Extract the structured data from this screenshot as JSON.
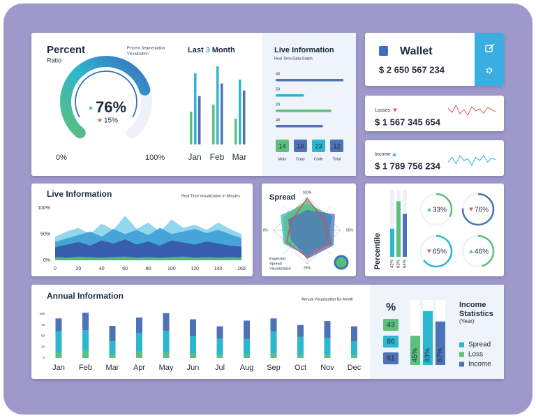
{
  "percent": {
    "title": "Percent",
    "subtitle": "Ratio",
    "note": [
      "Percent Segmentation",
      "Visualization"
    ],
    "value": 76,
    "value_label": "76%",
    "change": 15,
    "change_label": "15%",
    "ticks": [
      {
        "value": 0,
        "label": "0%"
      },
      {
        "value": 100,
        "label": "100%"
      }
    ]
  },
  "last_months": {
    "title": [
      "Last",
      "3",
      "Month"
    ],
    "categories": [
      "Jan",
      "Feb",
      "Mar"
    ],
    "series": [
      {
        "color": "#5cbf7c",
        "values": [
          42,
          51,
          33
        ]
      },
      {
        "color": "#2cb6cf",
        "values": [
          91,
          100,
          83
        ]
      },
      {
        "color": "#4d72b7",
        "values": [
          62,
          78,
          69
        ]
      }
    ]
  },
  "live_info": {
    "title": "Live Information",
    "subtitle": "Real Time Data Graph",
    "rows": [
      {
        "label": "40",
        "value": 100,
        "color": "#4d72b7"
      },
      {
        "label": "50",
        "value": 42,
        "color": "#2cb6cf"
      },
      {
        "label": "20",
        "value": 82,
        "color": "#5cbf7c"
      },
      {
        "label": "40",
        "value": 70,
        "color": "#4d72b7"
      }
    ],
    "tiles": [
      {
        "value": "14",
        "label": "Main",
        "color": "#5cbf7c"
      },
      {
        "value": "19",
        "label": "Copy",
        "color": "#4d72b7"
      },
      {
        "value": "23",
        "label": "Code",
        "color": "#2cb6cf"
      },
      {
        "value": "12",
        "label": "Total",
        "color": "#4d72b7"
      }
    ]
  },
  "wallet": {
    "title": "Wallet",
    "amount": "$ 2 650 567 234"
  },
  "losses": {
    "title": "Losses",
    "amount": "$ 1 567 345 654",
    "color": "#e05a5a",
    "trend": [
      60,
      45,
      70,
      40,
      55,
      35,
      65,
      50,
      58,
      42,
      62,
      55,
      48
    ]
  },
  "income": {
    "title": "Income",
    "amount": "$ 1 789 756 234",
    "color": "#2cb6cf",
    "trend": [
      40,
      55,
      35,
      60,
      45,
      50,
      30,
      55,
      45,
      60,
      40,
      52,
      48
    ]
  },
  "realtime": {
    "title": "Live Information",
    "subtitle": "Real Time Visualization In Minutes",
    "x": [
      0,
      10,
      20,
      30,
      40,
      50,
      60,
      70,
      80,
      90,
      100,
      110,
      120,
      130,
      140,
      150,
      160
    ],
    "xlim": [
      0,
      163
    ],
    "xticks": [
      0,
      20,
      40,
      60,
      80,
      100,
      120,
      140,
      160
    ],
    "ylim": [
      0,
      100
    ],
    "yticks": [
      {
        "value": 0,
        "label": "0%"
      },
      {
        "value": 50,
        "label": "50%"
      },
      {
        "value": 100,
        "label": "100%"
      }
    ],
    "series": [
      {
        "color": "#86d3ea",
        "values": [
          45,
          55,
          62,
          50,
          70,
          58,
          85,
          60,
          72,
          55,
          78,
          62,
          68,
          58,
          72,
          60,
          50
        ]
      },
      {
        "color": "#3f9fd6",
        "values": [
          35,
          42,
          48,
          55,
          45,
          60,
          50,
          58,
          48,
          62,
          50,
          55,
          60,
          52,
          58,
          50,
          42
        ]
      },
      {
        "color": "#3556a8",
        "values": [
          25,
          30,
          35,
          28,
          38,
          32,
          40,
          30,
          36,
          28,
          38,
          34,
          30,
          36,
          32,
          28,
          26
        ]
      },
      {
        "color": "#56c07a",
        "values": [
          6,
          5,
          7,
          6,
          5,
          6,
          7,
          5,
          6,
          5,
          6,
          7,
          5,
          6,
          5,
          6,
          5
        ]
      }
    ]
  },
  "spread": {
    "title": "Spread",
    "note": [
      "Expected",
      "Spread",
      "Visualization"
    ],
    "axis_labels": [
      "100%",
      "50%",
      "25%",
      "0%"
    ],
    "series": [
      {
        "color": "#2cb6cf",
        "values": [
          80,
          85,
          70,
          75,
          80,
          90
        ]
      },
      {
        "color": "#5cbf7c",
        "values": [
          90,
          70,
          85,
          60,
          75,
          80
        ]
      },
      {
        "color": "#4d72b7",
        "values": [
          60,
          95,
          90,
          85,
          55,
          65
        ]
      },
      {
        "color": "#e04848",
        "values": [
          95,
          60,
          75,
          80,
          70,
          55
        ]
      }
    ]
  },
  "percentile": {
    "title": "Percentile",
    "bars": [
      {
        "value": 42,
        "label": "42%",
        "color": "#2cb6cf"
      },
      {
        "value": 83,
        "label": "83%",
        "color": "#5cbf7c"
      },
      {
        "value": 64,
        "label": "64%",
        "color": "#4d72b7"
      }
    ],
    "donuts": [
      {
        "value": 33,
        "label": "33%",
        "color": "#5cbf7c",
        "trend": "up"
      },
      {
        "value": 76,
        "label": "76%",
        "color": "#4d72b7",
        "trend": "down"
      },
      {
        "value": 65,
        "label": "65%",
        "color": "#2cb6cf",
        "trend": "down"
      },
      {
        "value": 46,
        "label": "46%",
        "color": "#5cbf7c",
        "trend": "up"
      }
    ]
  },
  "annual": {
    "title": "Annual Information",
    "subtitle": "Annual Visualization By Month",
    "categories": [
      "Jan",
      "Feb",
      "Mar",
      "Apr",
      "May",
      "Jun",
      "Jul",
      "Aug",
      "Sep",
      "Oct",
      "Nov",
      "Dec"
    ],
    "ylim": [
      0,
      105
    ],
    "yticks": [
      0,
      25,
      50,
      75,
      100
    ],
    "series": [
      {
        "color": "#5cbf7c",
        "values": [
          12,
          18,
          8,
          15,
          12,
          10,
          6,
          8,
          10,
          6,
          8,
          6
        ]
      },
      {
        "color": "#2cb6cf",
        "values": [
          48,
          45,
          30,
          42,
          50,
          40,
          38,
          35,
          50,
          42,
          38,
          32
        ]
      },
      {
        "color": "#4d72b7",
        "values": [
          30,
          40,
          35,
          35,
          40,
          38,
          28,
          42,
          30,
          27,
          38,
          34
        ]
      }
    ]
  },
  "income_stats": {
    "symbol": "%",
    "title": [
      "Income",
      "Statistics"
    ],
    "subtitle": "(Year)",
    "tiles": [
      {
        "value": "43",
        "color": "#5cbf7c"
      },
      {
        "value": "86",
        "color": "#2cb6cf"
      },
      {
        "value": "61",
        "color": "#4d72b7"
      }
    ],
    "bars": [
      {
        "value": 45,
        "label": "45%",
        "color": "#5cbf7c"
      },
      {
        "value": 83,
        "label": "83%",
        "color": "#2cb6cf"
      },
      {
        "value": 67,
        "label": "67%",
        "color": "#4d72b7"
      }
    ],
    "legend": [
      {
        "name": "Spread",
        "color": "#2cb6cf"
      },
      {
        "name": "Loss",
        "color": "#5cbf7c"
      },
      {
        "name": "Income",
        "color": "#4d72b7"
      }
    ]
  }
}
